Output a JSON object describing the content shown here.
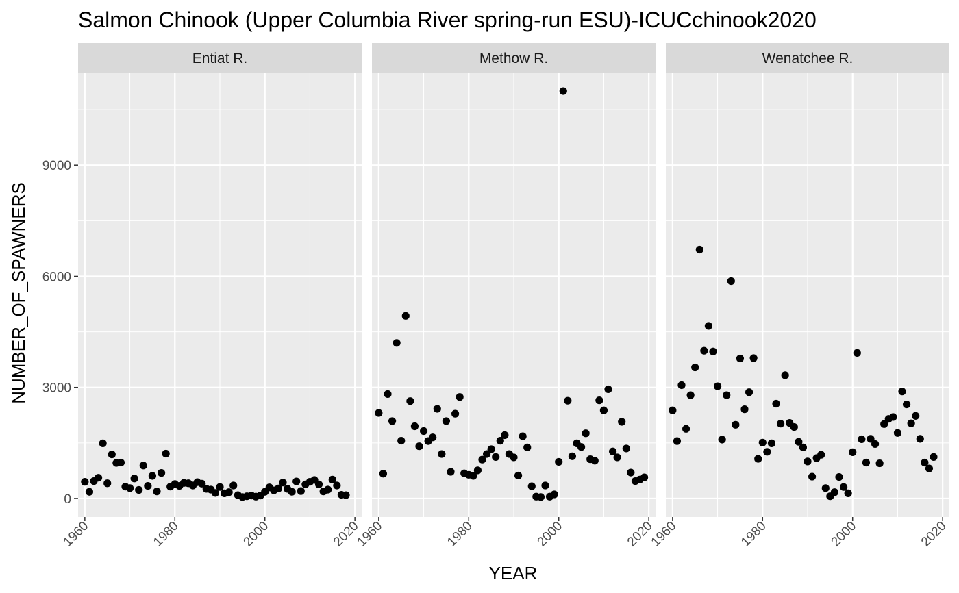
{
  "chart_data": {
    "type": "scatter",
    "title": "Salmon Chinook (Upper Columbia River spring-run ESU)-ICUCchinook2020",
    "xlabel": "YEAR",
    "ylabel": "NUMBER_OF_SPAWNERS",
    "xlim": [
      1958.5,
      2021.5
    ],
    "ylim": [
      -500,
      11500
    ],
    "x_ticks": [
      1960,
      1980,
      2000,
      2020
    ],
    "y_ticks": [
      0,
      3000,
      6000,
      9000
    ],
    "grid": true,
    "legend": "none",
    "point_color": "#000000",
    "panel_bg": "#ebebeb",
    "strip_bg": "#d9d9d9",
    "panels": [
      {
        "label": "Entiat R.",
        "x": [
          1960,
          1961,
          1962,
          1963,
          1964,
          1965,
          1966,
          1967,
          1968,
          1969,
          1970,
          1971,
          1972,
          1973,
          1974,
          1975,
          1976,
          1977,
          1978,
          1979,
          1980,
          1981,
          1982,
          1983,
          1984,
          1985,
          1986,
          1987,
          1988,
          1989,
          1990,
          1991,
          1992,
          1993,
          1994,
          1995,
          1996,
          1997,
          1998,
          1999,
          2000,
          2001,
          2002,
          2003,
          2004,
          2005,
          2006,
          2007,
          2008,
          2009,
          2010,
          2011,
          2012,
          2013,
          2014,
          2015,
          2016,
          2017,
          2018
        ],
        "y": [
          450,
          180,
          470,
          560,
          1490,
          410,
          1190,
          960,
          970,
          320,
          280,
          540,
          230,
          890,
          340,
          610,
          190,
          690,
          1210,
          320,
          390,
          340,
          420,
          410,
          350,
          440,
          400,
          260,
          240,
          150,
          310,
          140,
          170,
          350,
          90,
          40,
          60,
          80,
          50,
          80,
          180,
          300,
          220,
          270,
          430,
          260,
          180,
          460,
          200,
          380,
          450,
          500,
          380,
          190,
          240,
          510,
          350,
          100,
          90
        ]
      },
      {
        "label": "Methow R.",
        "x": [
          1960,
          1961,
          1962,
          1963,
          1964,
          1965,
          1966,
          1967,
          1968,
          1969,
          1970,
          1971,
          1972,
          1973,
          1974,
          1975,
          1976,
          1977,
          1978,
          1979,
          1980,
          1981,
          1982,
          1983,
          1984,
          1985,
          1986,
          1987,
          1988,
          1989,
          1990,
          1991,
          1992,
          1993,
          1994,
          1995,
          1996,
          1997,
          1998,
          1999,
          2000,
          2001,
          2002,
          2003,
          2004,
          2005,
          2006,
          2007,
          2008,
          2009,
          2010,
          2011,
          2012,
          2013,
          2014,
          2015,
          2016,
          2017,
          2018,
          2019
        ],
        "y": [
          2310,
          670,
          2820,
          2090,
          4200,
          1560,
          4930,
          2630,
          1950,
          1410,
          1820,
          1550,
          1650,
          2420,
          1200,
          2090,
          720,
          2290,
          2740,
          680,
          640,
          610,
          760,
          1050,
          1200,
          1330,
          1120,
          1560,
          1710,
          1200,
          1110,
          620,
          1680,
          1380,
          330,
          50,
          40,
          350,
          50,
          110,
          990,
          11000,
          2640,
          1140,
          1490,
          1390,
          1760,
          1060,
          1020,
          2650,
          2380,
          2950,
          1270,
          1110,
          2070,
          1350,
          700,
          470,
          510,
          570
        ]
      },
      {
        "label": "Wenatchee R.",
        "x": [
          1960,
          1961,
          1962,
          1963,
          1964,
          1965,
          1966,
          1967,
          1968,
          1969,
          1970,
          1971,
          1972,
          1973,
          1974,
          1975,
          1976,
          1977,
          1978,
          1979,
          1980,
          1981,
          1982,
          1983,
          1984,
          1985,
          1986,
          1987,
          1988,
          1989,
          1990,
          1991,
          1992,
          1993,
          1994,
          1995,
          1996,
          1997,
          1998,
          1999,
          2000,
          2001,
          2002,
          2003,
          2004,
          2005,
          2006,
          2007,
          2008,
          2009,
          2010,
          2011,
          2012,
          2013,
          2014,
          2015,
          2016,
          2017,
          2018
        ],
        "y": [
          2380,
          1550,
          3060,
          1880,
          2790,
          3540,
          6720,
          3990,
          4660,
          3970,
          3030,
          1590,
          2790,
          5870,
          1990,
          3780,
          2410,
          2870,
          3790,
          1070,
          1510,
          1260,
          1490,
          2560,
          2020,
          3330,
          2040,
          1930,
          1530,
          1380,
          1000,
          590,
          1090,
          1180,
          280,
          60,
          170,
          580,
          310,
          140,
          1250,
          3930,
          1600,
          970,
          1610,
          1470,
          950,
          2010,
          2150,
          2200,
          1770,
          2890,
          2540,
          2030,
          2230,
          1610,
          970,
          810,
          1120
        ]
      }
    ]
  }
}
